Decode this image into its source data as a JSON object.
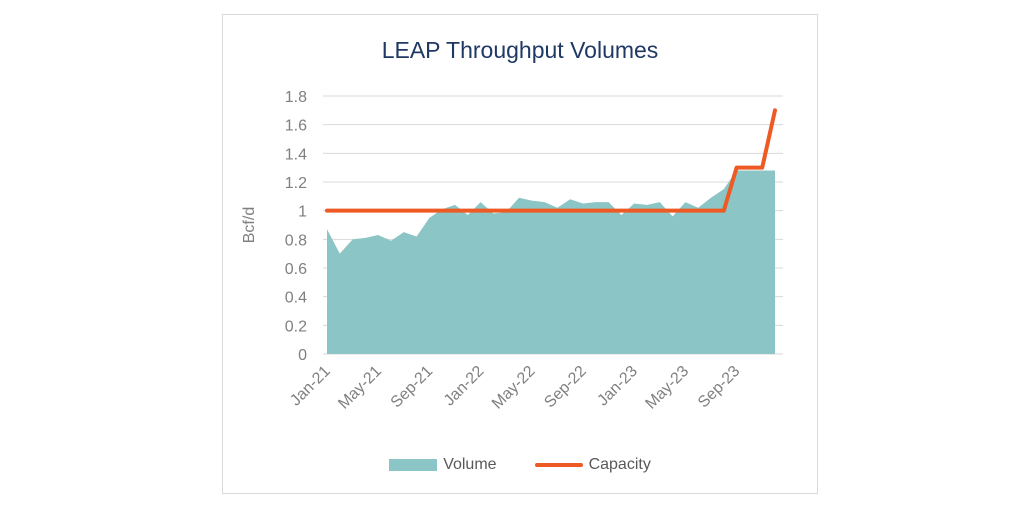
{
  "chart_data": {
    "type": "area",
    "title": "LEAP Throughput Volumes",
    "ylabel": "Bcf/d",
    "xlabel": "",
    "ylim": [
      0,
      1.8
    ],
    "yticks": [
      "0",
      "0.2",
      "0.4",
      "0.6",
      "0.8",
      "1",
      "1.2",
      "1.4",
      "1.6",
      "1.8"
    ],
    "x": [
      "Jan-21",
      "Feb-21",
      "Mar-21",
      "Apr-21",
      "May-21",
      "Jun-21",
      "Jul-21",
      "Aug-21",
      "Sep-21",
      "Oct-21",
      "Nov-21",
      "Dec-21",
      "Jan-22",
      "Feb-22",
      "Mar-22",
      "Apr-22",
      "May-22",
      "Jun-22",
      "Jul-22",
      "Aug-22",
      "Sep-22",
      "Oct-22",
      "Nov-22",
      "Dec-22",
      "Jan-23",
      "Feb-23",
      "Mar-23",
      "Apr-23",
      "May-23",
      "Jun-23",
      "Jul-23",
      "Aug-23",
      "Sep-23",
      "Oct-23",
      "Nov-23",
      "Dec-23"
    ],
    "xtick_labels": [
      "Jan-21",
      "May-21",
      "Sep-21",
      "Jan-22",
      "May-22",
      "Sep-22",
      "Jan-23",
      "May-23",
      "Sep-23"
    ],
    "series": [
      {
        "name": "Volume",
        "kind": "area",
        "color": "#8cc5c6",
        "values": [
          0.87,
          0.7,
          0.8,
          0.81,
          0.83,
          0.79,
          0.85,
          0.82,
          0.95,
          1.01,
          1.04,
          0.97,
          1.06,
          0.98,
          0.99,
          1.09,
          1.07,
          1.06,
          1.02,
          1.08,
          1.05,
          1.06,
          1.06,
          0.97,
          1.05,
          1.04,
          1.06,
          0.96,
          1.06,
          1.02,
          1.09,
          1.15,
          1.28,
          1.28,
          1.28,
          1.28
        ]
      },
      {
        "name": "Capacity",
        "kind": "line",
        "color": "#ee5a24",
        "values": [
          1.0,
          1.0,
          1.0,
          1.0,
          1.0,
          1.0,
          1.0,
          1.0,
          1.0,
          1.0,
          1.0,
          1.0,
          1.0,
          1.0,
          1.0,
          1.0,
          1.0,
          1.0,
          1.0,
          1.0,
          1.0,
          1.0,
          1.0,
          1.0,
          1.0,
          1.0,
          1.0,
          1.0,
          1.0,
          1.0,
          1.0,
          1.0,
          1.3,
          1.3,
          1.3,
          1.7
        ]
      }
    ],
    "legend": "bottom",
    "grid": true
  }
}
